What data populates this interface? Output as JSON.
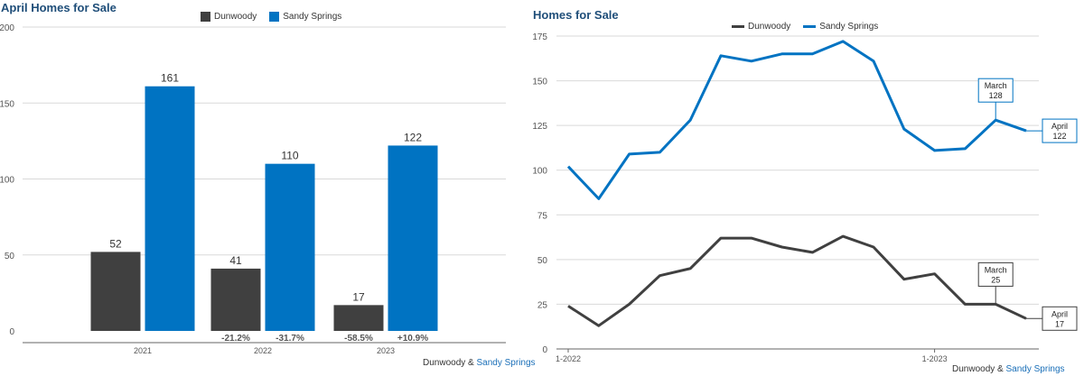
{
  "colors": {
    "dunwoody": "#404040",
    "sandy_springs": "#0073c2",
    "title": "#1f4e79",
    "grid": "#d9d9d9"
  },
  "chart_data": [
    {
      "type": "bar",
      "title": "April Homes for Sale",
      "categories": [
        "2021",
        "2022",
        "2023"
      ],
      "series": [
        {
          "name": "Dunwoody",
          "values": [
            52,
            41,
            17
          ],
          "changes": [
            "",
            "-21.2%",
            "-58.5%"
          ]
        },
        {
          "name": "Sandy Springs",
          "values": [
            161,
            110,
            122
          ],
          "changes": [
            "",
            "-31.7%",
            "+10.9%"
          ]
        }
      ],
      "ylim": [
        0,
        200
      ],
      "yticks": [
        0,
        50,
        100,
        150,
        200
      ],
      "legend_position": "top-center",
      "source": {
        "part1": "Dunwoody",
        "amp": "&",
        "part2": "Sandy Springs"
      }
    },
    {
      "type": "line",
      "title": "Homes for Sale",
      "x": [
        "1-2022",
        "2-2022",
        "3-2022",
        "4-2022",
        "5-2022",
        "6-2022",
        "7-2022",
        "8-2022",
        "9-2022",
        "10-2022",
        "11-2022",
        "12-2022",
        "1-2023",
        "2-2023",
        "3-2023",
        "4-2023"
      ],
      "xticks": [
        "1-2022",
        "1-2023"
      ],
      "series": [
        {
          "name": "Dunwoody",
          "values": [
            24,
            13,
            25,
            41,
            45,
            62,
            62,
            57,
            54,
            63,
            57,
            39,
            42,
            25,
            25,
            17
          ]
        },
        {
          "name": "Sandy Springs",
          "values": [
            102,
            84,
            109,
            110,
            128,
            164,
            161,
            165,
            165,
            172,
            161,
            123,
            111,
            112,
            128,
            122
          ]
        }
      ],
      "ylim": [
        0,
        175
      ],
      "yticks": [
        0,
        25,
        50,
        75,
        100,
        125,
        150,
        175
      ],
      "annotations": [
        {
          "series": "Sandy Springs",
          "month": "March",
          "value": 128
        },
        {
          "series": "Sandy Springs",
          "month": "April",
          "value": 122
        },
        {
          "series": "Dunwoody",
          "month": "March",
          "value": 25
        },
        {
          "series": "Dunwoody",
          "month": "April",
          "value": 17
        }
      ],
      "legend_position": "top-center",
      "source": {
        "part1": "Dunwoody",
        "amp": "&",
        "part2": "Sandy Springs"
      }
    }
  ]
}
